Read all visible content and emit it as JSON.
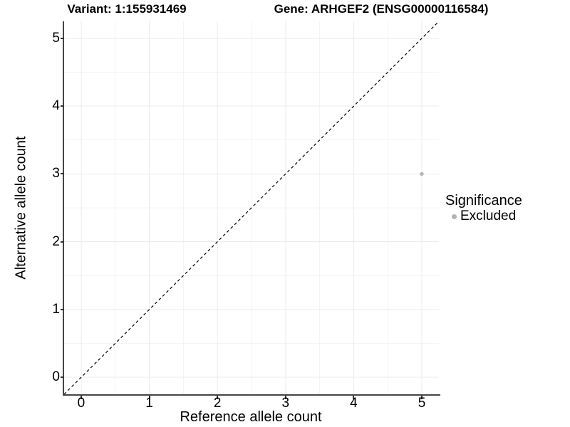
{
  "titles": {
    "variant": "Variant: 1:155931469",
    "gene": "Gene: ARHGEF2 (ENSG00000116584)"
  },
  "chart_data": {
    "type": "scatter",
    "xlabel": "Reference allele count",
    "ylabel": "Alternative allele count",
    "xlim": [
      -0.25,
      5.25
    ],
    "ylim": [
      -0.25,
      5.25
    ],
    "xticks": [
      0,
      1,
      2,
      3,
      4,
      5
    ],
    "yticks": [
      0,
      1,
      2,
      3,
      4,
      5
    ],
    "xticks_minor": [
      0.5,
      1.5,
      2.5,
      3.5,
      4.5
    ],
    "yticks_minor": [
      0.5,
      1.5,
      2.5,
      3.5,
      4.5
    ],
    "grid": "major and minor gridlines on white background",
    "identity_line": {
      "style": "dashed",
      "x1": -0.25,
      "y1": -0.25,
      "x2": 5.25,
      "y2": 5.25
    },
    "series": [
      {
        "name": "Excluded",
        "color": "#b3b3b3",
        "points": [
          {
            "x": 5,
            "y": 3
          }
        ]
      }
    ],
    "legend": {
      "title": "Significance",
      "position": "right",
      "items": [
        {
          "label": "Excluded",
          "color": "#b3b3b3"
        }
      ]
    }
  },
  "colors": {
    "background": "#ffffff",
    "grid_major": "#ebebeb",
    "grid_minor": "#f4f4f4",
    "axis_line": "#454545",
    "tick_mark": "#333333",
    "text": "#000000",
    "identity_line": "#000000"
  }
}
